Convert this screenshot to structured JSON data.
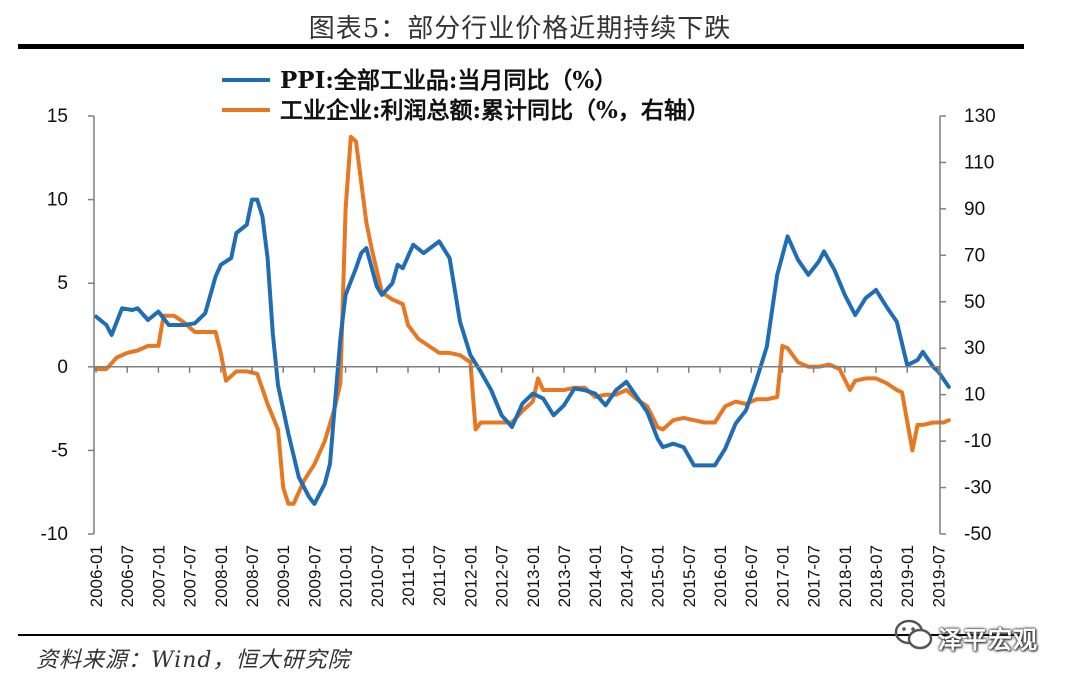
{
  "figure": {
    "title": "图表5：部分行业价格近期持续下跌",
    "source": "资料来源：Wind，恒大研究院",
    "watermark": "泽平宏观"
  },
  "chart_data": {
    "type": "line",
    "legend_position": "top-center",
    "grid": false,
    "x_ticks": [
      "2006-01",
      "2006-07",
      "2007-01",
      "2007-07",
      "2008-01",
      "2008-07",
      "2009-01",
      "2009-07",
      "2010-01",
      "2010-07",
      "2011-01",
      "2011-07",
      "2012-01",
      "2012-07",
      "2013-01",
      "2013-07",
      "2014-01",
      "2014-07",
      "2015-01",
      "2015-07",
      "2016-01",
      "2016-07",
      "2017-01",
      "2017-07",
      "2018-01",
      "2018-07",
      "2019-01",
      "2019-07"
    ],
    "y_left": {
      "ticks": [
        15,
        10,
        5,
        0,
        -5,
        -10
      ],
      "range": [
        -10,
        15
      ]
    },
    "y_right": {
      "ticks": [
        130,
        110,
        90,
        70,
        50,
        30,
        10,
        -10,
        -30,
        -50
      ],
      "range": [
        -50,
        130
      ]
    },
    "series": [
      {
        "name": "PPI:全部工业品:当月同比（%）",
        "axis": "left",
        "color": "#1f6eb5",
        "points": [
          [
            "2006-01",
            3.0
          ],
          [
            "2006-03",
            2.5
          ],
          [
            "2006-04",
            1.9
          ],
          [
            "2006-06",
            3.5
          ],
          [
            "2006-08",
            3.4
          ],
          [
            "2006-09",
            3.5
          ],
          [
            "2006-11",
            2.8
          ],
          [
            "2007-01",
            3.3
          ],
          [
            "2007-03",
            2.5
          ],
          [
            "2007-06",
            2.5
          ],
          [
            "2007-08",
            2.6
          ],
          [
            "2007-10",
            3.2
          ],
          [
            "2007-12",
            5.4
          ],
          [
            "2008-01",
            6.1
          ],
          [
            "2008-03",
            6.5
          ],
          [
            "2008-04",
            8.0
          ],
          [
            "2008-06",
            8.5
          ],
          [
            "2008-07",
            10.0
          ],
          [
            "2008-08",
            10.0
          ],
          [
            "2008-09",
            9.0
          ],
          [
            "2008-10",
            6.5
          ],
          [
            "2008-11",
            2.0
          ],
          [
            "2008-12",
            -1.1
          ],
          [
            "2009-02",
            -4.0
          ],
          [
            "2009-04",
            -6.6
          ],
          [
            "2009-06",
            -7.8
          ],
          [
            "2009-07",
            -8.2
          ],
          [
            "2009-09",
            -7.0
          ],
          [
            "2009-10",
            -5.8
          ],
          [
            "2009-11",
            -2.0
          ],
          [
            "2009-12",
            1.7
          ],
          [
            "2010-01",
            4.3
          ],
          [
            "2010-03",
            5.9
          ],
          [
            "2010-04",
            6.8
          ],
          [
            "2010-05",
            7.1
          ],
          [
            "2010-07",
            4.8
          ],
          [
            "2010-08",
            4.3
          ],
          [
            "2010-10",
            5.0
          ],
          [
            "2010-11",
            6.1
          ],
          [
            "2010-12",
            5.9
          ],
          [
            "2011-01",
            6.6
          ],
          [
            "2011-02",
            7.3
          ],
          [
            "2011-04",
            6.8
          ],
          [
            "2011-07",
            7.5
          ],
          [
            "2011-09",
            6.5
          ],
          [
            "2011-11",
            2.7
          ],
          [
            "2012-01",
            0.7
          ],
          [
            "2012-03",
            -0.3
          ],
          [
            "2012-05",
            -1.4
          ],
          [
            "2012-07",
            -2.9
          ],
          [
            "2012-09",
            -3.6
          ],
          [
            "2012-11",
            -2.2
          ],
          [
            "2013-01",
            -1.6
          ],
          [
            "2013-03",
            -1.9
          ],
          [
            "2013-05",
            -2.9
          ],
          [
            "2013-07",
            -2.3
          ],
          [
            "2013-09",
            -1.3
          ],
          [
            "2013-11",
            -1.4
          ],
          [
            "2014-01",
            -1.6
          ],
          [
            "2014-03",
            -2.3
          ],
          [
            "2014-05",
            -1.4
          ],
          [
            "2014-07",
            -0.9
          ],
          [
            "2014-09",
            -1.8
          ],
          [
            "2014-11",
            -2.7
          ],
          [
            "2015-01",
            -4.3
          ],
          [
            "2015-02",
            -4.8
          ],
          [
            "2015-04",
            -4.6
          ],
          [
            "2015-06",
            -4.8
          ],
          [
            "2015-08",
            -5.9
          ],
          [
            "2015-10",
            -5.9
          ],
          [
            "2015-12",
            -5.9
          ],
          [
            "2016-02",
            -4.9
          ],
          [
            "2016-04",
            -3.4
          ],
          [
            "2016-06",
            -2.6
          ],
          [
            "2016-08",
            -0.8
          ],
          [
            "2016-10",
            1.2
          ],
          [
            "2016-12",
            5.5
          ],
          [
            "2017-02",
            7.8
          ],
          [
            "2017-04",
            6.4
          ],
          [
            "2017-06",
            5.5
          ],
          [
            "2017-08",
            6.3
          ],
          [
            "2017-09",
            6.9
          ],
          [
            "2017-11",
            5.8
          ],
          [
            "2018-01",
            4.3
          ],
          [
            "2018-03",
            3.1
          ],
          [
            "2018-05",
            4.1
          ],
          [
            "2018-07",
            4.6
          ],
          [
            "2018-09",
            3.6
          ],
          [
            "2018-11",
            2.7
          ],
          [
            "2019-01",
            0.1
          ],
          [
            "2019-03",
            0.4
          ],
          [
            "2019-04",
            0.9
          ],
          [
            "2019-06",
            0.0
          ],
          [
            "2019-07",
            -0.3
          ],
          [
            "2019-09",
            -1.2
          ]
        ]
      },
      {
        "name": "工业企业:利润总额:累计同比（%，右轴）",
        "axis": "right",
        "color": "#e87722",
        "points": [
          [
            "2006-01",
            21
          ],
          [
            "2006-03",
            21
          ],
          [
            "2006-05",
            26
          ],
          [
            "2006-07",
            28
          ],
          [
            "2006-09",
            29
          ],
          [
            "2006-11",
            31
          ],
          [
            "2007-01",
            31
          ],
          [
            "2007-02",
            44
          ],
          [
            "2007-04",
            44
          ],
          [
            "2007-06",
            41
          ],
          [
            "2007-08",
            37
          ],
          [
            "2007-10",
            37
          ],
          [
            "2007-12",
            37
          ],
          [
            "2008-01",
            28
          ],
          [
            "2008-02",
            16
          ],
          [
            "2008-04",
            20
          ],
          [
            "2008-06",
            20
          ],
          [
            "2008-08",
            19
          ],
          [
            "2008-10",
            6
          ],
          [
            "2008-12",
            -5
          ],
          [
            "2009-01",
            -30
          ],
          [
            "2009-02",
            -37
          ],
          [
            "2009-03",
            -37
          ],
          [
            "2009-05",
            -27
          ],
          [
            "2009-07",
            -20
          ],
          [
            "2009-09",
            -10
          ],
          [
            "2009-11",
            5
          ],
          [
            "2009-12",
            15
          ],
          [
            "2010-01",
            90
          ],
          [
            "2010-02",
            121
          ],
          [
            "2010-03",
            119
          ],
          [
            "2010-05",
            84
          ],
          [
            "2010-06",
            73
          ],
          [
            "2010-08",
            54
          ],
          [
            "2010-10",
            51
          ],
          [
            "2010-12",
            49
          ],
          [
            "2011-01",
            40
          ],
          [
            "2011-03",
            34
          ],
          [
            "2011-05",
            31
          ],
          [
            "2011-07",
            28
          ],
          [
            "2011-09",
            28
          ],
          [
            "2011-11",
            27
          ],
          [
            "2012-01",
            24
          ],
          [
            "2012-02",
            -5
          ],
          [
            "2012-03",
            -2
          ],
          [
            "2012-05",
            -2
          ],
          [
            "2012-07",
            -2
          ],
          [
            "2012-09",
            -2
          ],
          [
            "2012-11",
            3
          ],
          [
            "2013-01",
            7
          ],
          [
            "2013-02",
            17
          ],
          [
            "2013-03",
            12
          ],
          [
            "2013-05",
            12
          ],
          [
            "2013-07",
            12
          ],
          [
            "2013-09",
            13
          ],
          [
            "2013-11",
            13
          ],
          [
            "2014-01",
            9
          ],
          [
            "2014-03",
            10
          ],
          [
            "2014-05",
            10
          ],
          [
            "2014-07",
            12
          ],
          [
            "2014-09",
            8
          ],
          [
            "2014-11",
            5
          ],
          [
            "2015-01",
            -4
          ],
          [
            "2015-02",
            -5
          ],
          [
            "2015-04",
            -1
          ],
          [
            "2015-06",
            0
          ],
          [
            "2015-08",
            -1
          ],
          [
            "2015-10",
            -2
          ],
          [
            "2015-12",
            -2
          ],
          [
            "2016-02",
            5
          ],
          [
            "2016-04",
            7
          ],
          [
            "2016-06",
            6
          ],
          [
            "2016-08",
            8
          ],
          [
            "2016-10",
            8
          ],
          [
            "2016-12",
            9
          ],
          [
            "2017-01",
            31
          ],
          [
            "2017-02",
            30
          ],
          [
            "2017-04",
            24
          ],
          [
            "2017-06",
            22
          ],
          [
            "2017-08",
            22
          ],
          [
            "2017-10",
            23
          ],
          [
            "2017-12",
            21
          ],
          [
            "2018-02",
            12
          ],
          [
            "2018-03",
            16
          ],
          [
            "2018-05",
            17
          ],
          [
            "2018-07",
            17
          ],
          [
            "2018-09",
            15
          ],
          [
            "2018-11",
            12
          ],
          [
            "2018-12",
            11
          ],
          [
            "2019-02",
            -14
          ],
          [
            "2019-03",
            -3
          ],
          [
            "2019-04",
            -3
          ],
          [
            "2019-06",
            -2
          ],
          [
            "2019-08",
            -2
          ],
          [
            "2019-09",
            -1
          ]
        ]
      }
    ]
  }
}
